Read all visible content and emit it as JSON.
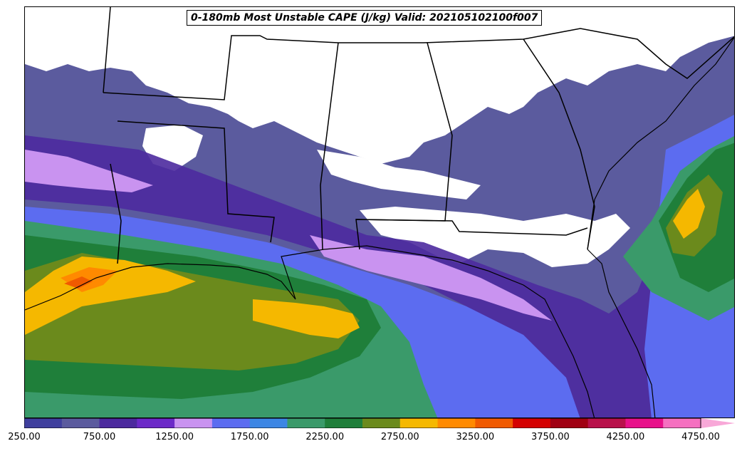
{
  "title": "0-180mb Most Unstable CAPE (J/kg) Valid: 202105102100f007",
  "colorbar": {
    "colors": [
      "#3f3f9e",
      "#5b5b9e",
      "#4c2a9e",
      "#6c2ac8",
      "#c993f0",
      "#5c6cf0",
      "#3c86e4",
      "#3a9a6a",
      "#1f7f3a",
      "#6b8a1c",
      "#f5b800",
      "#ff8a00",
      "#f05a00",
      "#d40000",
      "#a00012",
      "#b8104a",
      "#e8108a",
      "#f570c0"
    ],
    "extend_color": "#f8a8d8",
    "tick_labels": [
      "250.00",
      "750.00",
      "1250.00",
      "1750.00",
      "2250.00",
      "2750.00",
      "3250.00",
      "3750.00",
      "4250.00",
      "4750.00"
    ]
  },
  "map_colors": {
    "land_unshaded": "#ffffff",
    "borders": "#000000"
  }
}
